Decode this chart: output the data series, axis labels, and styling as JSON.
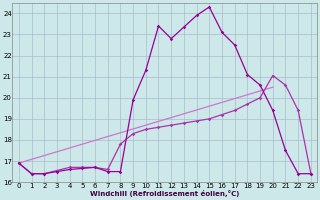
{
  "bg_color": "#cce8e8",
  "grid_color": "#aabccc",
  "xlim": [
    -0.5,
    23.5
  ],
  "ylim": [
    16,
    24.5
  ],
  "yticks": [
    16,
    17,
    18,
    19,
    20,
    21,
    22,
    23,
    24
  ],
  "xticks": [
    0,
    1,
    2,
    3,
    4,
    5,
    6,
    7,
    8,
    9,
    10,
    11,
    12,
    13,
    14,
    15,
    16,
    17,
    18,
    19,
    20,
    21,
    22,
    23
  ],
  "xlabel": "Windchill (Refroidissement éolien,°C)",
  "line1_x": [
    0,
    1,
    2,
    3,
    4,
    5,
    6,
    7,
    8,
    9,
    10,
    11,
    12,
    13,
    14,
    15,
    16,
    17,
    18,
    19,
    20,
    21,
    22,
    23
  ],
  "line1_y": [
    16.9,
    16.4,
    16.4,
    16.5,
    16.6,
    16.65,
    16.7,
    16.5,
    16.5,
    19.9,
    21.3,
    23.4,
    22.8,
    23.35,
    23.9,
    24.3,
    23.1,
    22.5,
    21.1,
    20.6,
    19.4,
    17.5,
    16.4,
    16.4
  ],
  "line2_x": [
    0,
    1,
    2,
    3,
    4,
    5,
    6,
    7,
    8,
    9,
    10,
    11,
    12,
    13,
    14,
    15,
    16,
    17,
    18,
    19,
    20,
    21,
    22,
    23
  ],
  "line2_y": [
    16.9,
    16.4,
    16.4,
    16.55,
    16.7,
    16.7,
    16.7,
    16.6,
    17.8,
    18.3,
    18.5,
    18.6,
    18.7,
    18.8,
    18.9,
    19.0,
    19.2,
    19.4,
    19.7,
    20.0,
    21.05,
    20.6,
    19.4,
    16.4
  ],
  "line3_x": [
    0,
    20
  ],
  "line3_y": [
    16.9,
    20.5
  ],
  "line1_color": "#990099",
  "line2_color": "#aa33aa",
  "line3_color": "#cc77cc"
}
